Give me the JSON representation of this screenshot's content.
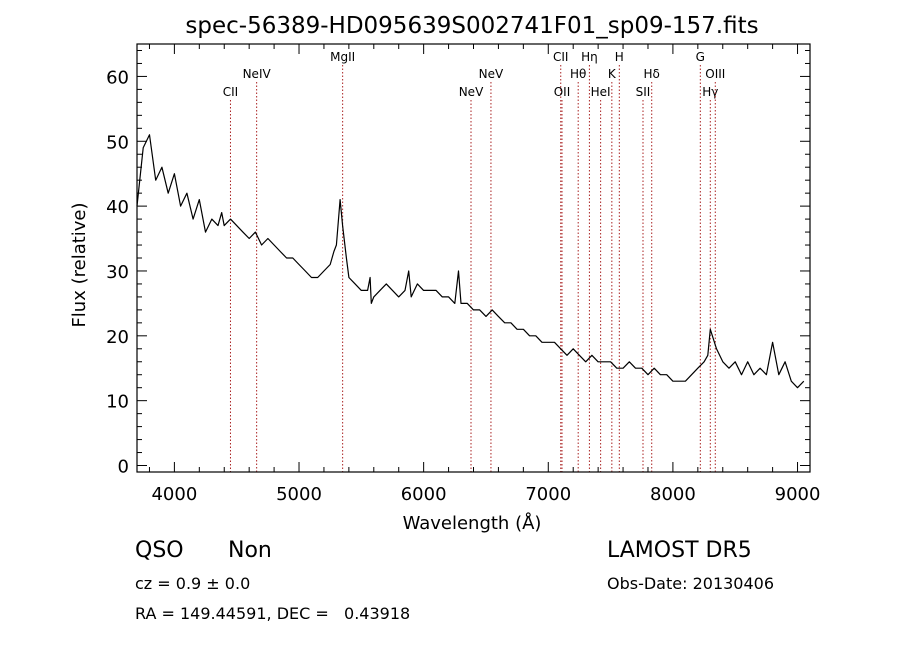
{
  "chart_data": {
    "type": "line",
    "title": "spec-56389-HD095639S002741F01_sp09-157.fits",
    "xlabel": "Wavelength (Å)",
    "ylabel": "Flux (relative)",
    "xlim": [
      3700,
      9100
    ],
    "ylim": [
      -1,
      65
    ],
    "xticks": [
      4000,
      5000,
      6000,
      7000,
      8000,
      9000
    ],
    "yticks": [
      0,
      10,
      20,
      30,
      40,
      50,
      60
    ],
    "line_color": "#000000",
    "marker_color": "#aa2222",
    "spectral_lines": [
      {
        "name": "CII",
        "wavelength": 4450,
        "row": 3
      },
      {
        "name": "NeIV",
        "wavelength": 4660,
        "row": 2
      },
      {
        "name": "MgII",
        "wavelength": 5350,
        "row": 1
      },
      {
        "name": "NeV",
        "wavelength": 6380,
        "row": 3
      },
      {
        "name": "NeV",
        "wavelength": 6540,
        "row": 2
      },
      {
        "name": "CII",
        "wavelength": 7100,
        "row": 1
      },
      {
        "name": "OII",
        "wavelength": 7110,
        "row": 3
      },
      {
        "name": "Hθ",
        "wavelength": 7240,
        "row": 2
      },
      {
        "name": "Hη",
        "wavelength": 7330,
        "row": 1
      },
      {
        "name": "HeI",
        "wavelength": 7420,
        "row": 3
      },
      {
        "name": "K",
        "wavelength": 7510,
        "row": 2
      },
      {
        "name": "H",
        "wavelength": 7570,
        "row": 1
      },
      {
        "name": "SII",
        "wavelength": 7760,
        "row": 3
      },
      {
        "name": "Hδ",
        "wavelength": 7830,
        "row": 2
      },
      {
        "name": "G",
        "wavelength": 8220,
        "row": 1
      },
      {
        "name": "Hγ",
        "wavelength": 8300,
        "row": 3
      },
      {
        "name": "OIII",
        "wavelength": 8340,
        "row": 2
      }
    ],
    "series": [
      {
        "x": [
          3700,
          3750,
          3800,
          3850,
          3900,
          3950,
          4000,
          4050,
          4100,
          4150,
          4200,
          4250,
          4300,
          4350,
          4380,
          4400,
          4450,
          4500,
          4550,
          4600,
          4650,
          4700,
          4750,
          4800,
          4850,
          4900,
          4950,
          5000,
          5050,
          5100,
          5150,
          5200,
          5250,
          5280,
          5300,
          5330,
          5350,
          5380,
          5400,
          5450,
          5500,
          5550,
          5570,
          5580,
          5600,
          5650,
          5700,
          5750,
          5800,
          5850,
          5880,
          5900,
          5950,
          6000,
          6050,
          6100,
          6150,
          6200,
          6250,
          6280,
          6300,
          6350,
          6400,
          6450,
          6500,
          6550,
          6600,
          6650,
          6700,
          6750,
          6800,
          6850,
          6900,
          6950,
          7000,
          7050,
          7100,
          7150,
          7200,
          7250,
          7300,
          7350,
          7400,
          7450,
          7500,
          7550,
          7600,
          7650,
          7700,
          7750,
          7800,
          7850,
          7900,
          7950,
          8000,
          8050,
          8100,
          8150,
          8200,
          8250,
          8280,
          8300,
          8350,
          8400,
          8450,
          8500,
          8550,
          8600,
          8650,
          8700,
          8750,
          8800,
          8850,
          8900,
          8950,
          9000,
          9050
        ],
        "y": [
          40,
          49,
          51,
          44,
          46,
          42,
          45,
          40,
          42,
          38,
          41,
          36,
          38,
          37,
          39,
          37,
          38,
          37,
          36,
          35,
          36,
          34,
          35,
          34,
          33,
          32,
          32,
          31,
          30,
          29,
          29,
          30,
          31,
          33,
          34,
          41,
          37,
          32,
          29,
          28,
          27,
          27,
          29,
          25,
          26,
          27,
          28,
          27,
          26,
          27,
          30,
          26,
          28,
          27,
          27,
          27,
          26,
          26,
          25,
          30,
          25,
          25,
          24,
          24,
          23,
          24,
          23,
          22,
          22,
          21,
          21,
          20,
          20,
          19,
          19,
          19,
          18,
          17,
          18,
          17,
          16,
          17,
          16,
          16,
          16,
          15,
          15,
          16,
          15,
          15,
          14,
          15,
          14,
          14,
          13,
          13,
          13,
          14,
          15,
          16,
          17,
          21,
          18,
          16,
          15,
          16,
          14,
          16,
          14,
          15,
          14,
          19,
          14,
          16,
          13,
          12,
          13
        ]
      }
    ]
  },
  "info": {
    "class": "QSO",
    "subclass": "Non",
    "survey": "LAMOST DR5",
    "cz": "cz = 0.9 ± 0.0",
    "obs_date": "Obs-Date: 20130406",
    "radec": "RA = 149.44591, DEC =   0.43918"
  }
}
